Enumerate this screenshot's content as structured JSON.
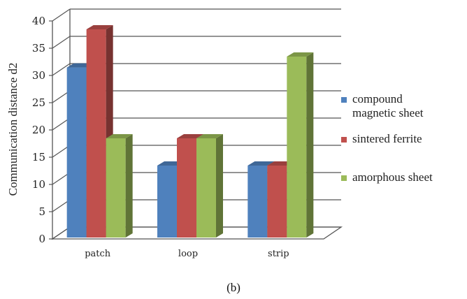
{
  "chart_data": {
    "type": "bar",
    "title": "",
    "xlabel": "",
    "ylabel": "Communication distance d2",
    "categories": [
      "patch",
      "loop",
      "strip"
    ],
    "series": [
      {
        "name": "compound magnetic sheet",
        "values": [
          33,
          15,
          15
        ],
        "color": "#4f81bd"
      },
      {
        "name": "sintered ferrite",
        "values": [
          40,
          20,
          15
        ],
        "color": "#c0504d"
      },
      {
        "name": "amorphous sheet",
        "values": [
          20,
          20,
          35
        ],
        "color": "#9bbb59"
      }
    ],
    "ylim": [
      0,
      40
    ],
    "yticks": [
      0,
      5,
      10,
      15,
      20,
      25,
      30,
      35,
      40
    ],
    "grid": true,
    "legend": "right",
    "style": "3d-clustered-column"
  },
  "caption": "(b)"
}
